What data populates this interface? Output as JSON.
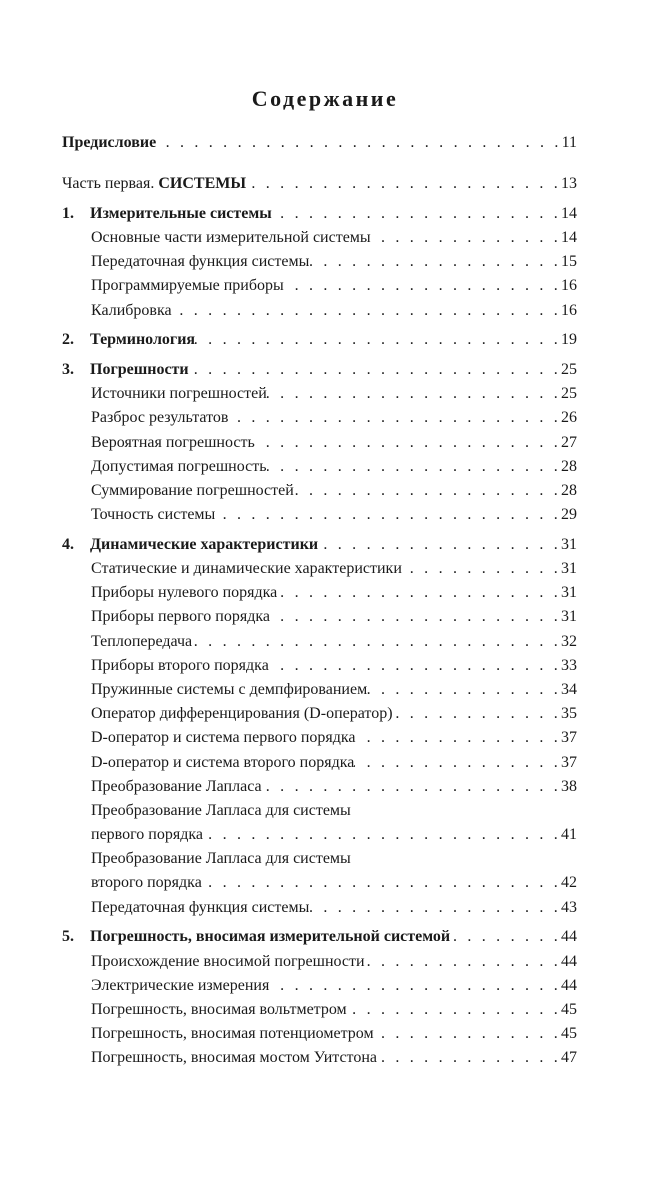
{
  "title": "Содержание",
  "entries": [
    {
      "kind": "top",
      "bold": "Предисловие",
      "page": "11"
    },
    {
      "kind": "part",
      "pre": "Часть первая. ",
      "bold": "СИСТЕМЫ",
      "page": "13"
    },
    {
      "kind": "chapter",
      "num": "1.",
      "bold": "Измерительные системы",
      "page": "14",
      "items": [
        {
          "lines": [
            "Основные части измерительной системы"
          ],
          "page": "14"
        },
        {
          "lines": [
            "Передаточная функция системы"
          ],
          "page": "15"
        },
        {
          "lines": [
            "Программируемые приборы"
          ],
          "page": "16"
        },
        {
          "lines": [
            "Калибровка"
          ],
          "page": "16"
        }
      ]
    },
    {
      "kind": "chapter",
      "num": "2.",
      "bold": "Терминология",
      "page": "19",
      "items": []
    },
    {
      "kind": "chapter",
      "num": "3.",
      "bold": "Погрешности",
      "page": "25",
      "items": [
        {
          "lines": [
            "Источники погрешностей"
          ],
          "page": "25"
        },
        {
          "lines": [
            "Разброс результатов"
          ],
          "page": "26"
        },
        {
          "lines": [
            "Вероятная погрешность"
          ],
          "page": "27"
        },
        {
          "lines": [
            "Допустимая погрешность"
          ],
          "page": "28"
        },
        {
          "lines": [
            "Суммирование погрешностей"
          ],
          "page": "28"
        },
        {
          "lines": [
            "Точность системы"
          ],
          "page": "29"
        }
      ]
    },
    {
      "kind": "chapter",
      "num": "4.",
      "bold": "Динамические характеристики",
      "page": "31",
      "items": [
        {
          "lines": [
            "Статические и динамические характеристики"
          ],
          "page": "31"
        },
        {
          "lines": [
            "Приборы нулевого порядка"
          ],
          "page": "31"
        },
        {
          "lines": [
            "Приборы первого порядка"
          ],
          "page": "31"
        },
        {
          "lines": [
            "Теплопередача"
          ],
          "page": "32"
        },
        {
          "lines": [
            "Приборы второго порядка"
          ],
          "page": "33"
        },
        {
          "lines": [
            "Пружинные системы с демпфированием"
          ],
          "page": "34"
        },
        {
          "lines": [
            "Оператор дифференцирования (D-оператор)"
          ],
          "page": "35"
        },
        {
          "lines": [
            "D-оператор и система первого порядка"
          ],
          "page": "37"
        },
        {
          "lines": [
            "D-оператор и система второго порядка"
          ],
          "page": "37"
        },
        {
          "lines": [
            "Преобразование Лапласа"
          ],
          "page": "38"
        },
        {
          "lines": [
            "Преобразование Лапласа для системы",
            "первого порядка"
          ],
          "page": "41"
        },
        {
          "lines": [
            "Преобразование Лапласа для системы",
            "второго порядка"
          ],
          "page": "42"
        },
        {
          "lines": [
            "Передаточная функция системы"
          ],
          "page": "43"
        }
      ]
    },
    {
      "kind": "chapter",
      "num": "5.",
      "bold": "Погрешность, вносимая измерительной системой",
      "page": "44",
      "items": [
        {
          "lines": [
            "Происхождение вносимой погрешности"
          ],
          "page": "44"
        },
        {
          "lines": [
            "Электрические измерения"
          ],
          "page": "44"
        },
        {
          "lines": [
            "Погрешность, вносимая вольтметром"
          ],
          "page": "45"
        },
        {
          "lines": [
            "Погрешность, вносимая потенциометром"
          ],
          "page": "45"
        },
        {
          "lines": [
            "Погрешность, вносимая мостом Уитстона"
          ],
          "page": "47"
        }
      ]
    }
  ]
}
